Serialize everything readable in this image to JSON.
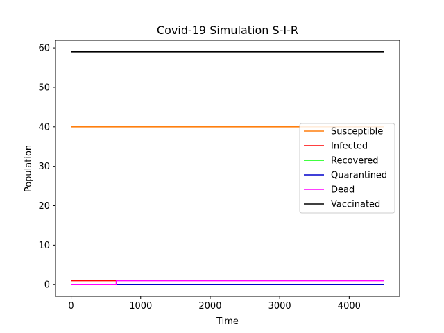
{
  "chart_data": {
    "type": "line",
    "title": "Covid-19 Simulation S-I-R",
    "xlabel": "Time",
    "ylabel": "Population",
    "xlim": [
      -225,
      4725
    ],
    "ylim": [
      -2.95,
      61.95
    ],
    "xticks": [
      0,
      1000,
      2000,
      3000,
      4000
    ],
    "yticks": [
      0,
      10,
      20,
      30,
      40,
      50,
      60
    ],
    "grid": false,
    "legend_position": "center-right",
    "series": [
      {
        "name": "Susceptible",
        "color": "#ff7f0e",
        "points": [
          [
            0,
            40
          ],
          [
            4500,
            40
          ]
        ]
      },
      {
        "name": "Infected",
        "color": "#ff0000",
        "points": [
          [
            0,
            1
          ],
          [
            650,
            1
          ],
          [
            650,
            0
          ],
          [
            4500,
            0
          ]
        ]
      },
      {
        "name": "Recovered",
        "color": "#00ff00",
        "points": [
          [
            0,
            0
          ],
          [
            4500,
            0
          ]
        ]
      },
      {
        "name": "Quarantined",
        "color": "#0000cc",
        "points": [
          [
            0,
            0
          ],
          [
            4500,
            0
          ]
        ]
      },
      {
        "name": "Dead",
        "color": "#ff00ff",
        "points": [
          [
            0,
            0
          ],
          [
            650,
            0
          ],
          [
            650,
            1
          ],
          [
            4500,
            1
          ]
        ]
      },
      {
        "name": "Vaccinated",
        "color": "#000000",
        "points": [
          [
            0,
            59
          ],
          [
            4500,
            59
          ]
        ]
      }
    ]
  }
}
